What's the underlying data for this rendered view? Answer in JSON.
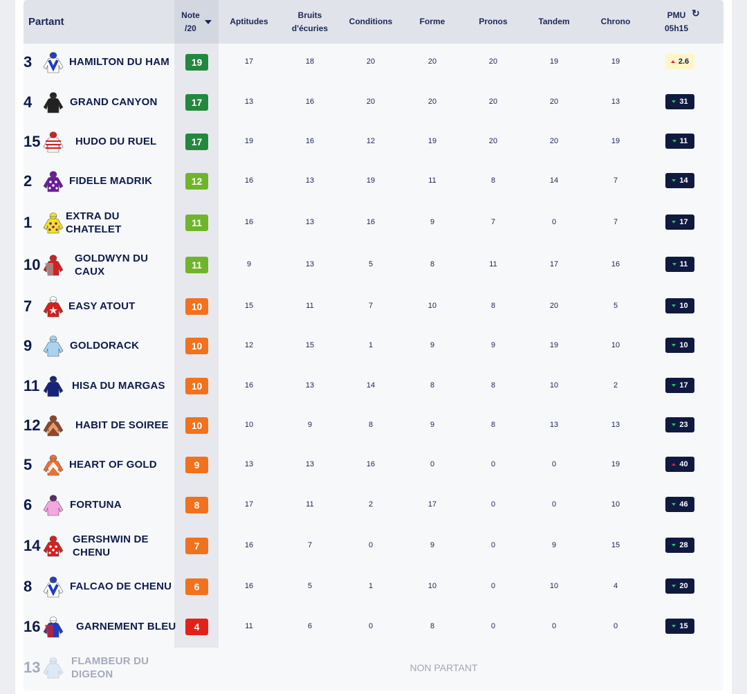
{
  "colors": {
    "note_dark_green": "#23883e",
    "note_light_green": "#6fb52c",
    "note_orange": "#f2711c",
    "note_red": "#e3211b",
    "pmu_bg": "#10193f",
    "fav_bg": "#fff5c8"
  },
  "headers": {
    "partant": "Partant",
    "note_line1": "Note",
    "note_line2": "/20",
    "aptitudes": "Aptitudes",
    "bruits_line1": "Bruits",
    "bruits_line2": "d'écuries",
    "conditions": "Conditions",
    "forme": "Forme",
    "pronos": "Pronos",
    "tandem": "Tandem",
    "chrono": "Chrono",
    "pmu_line1": "PMU",
    "pmu_line2": "05h15",
    "refresh_icon": "↻"
  },
  "runners": [
    {
      "num": "3",
      "name1": "HAMILTON DU HAM",
      "name2": "",
      "note": "19",
      "apt": "17",
      "bruits": "18",
      "cond": "20",
      "forme": "20",
      "pronos": "20",
      "tandem": "19",
      "chrono": "19",
      "pmu": "2.6",
      "trend": "up",
      "fav": true,
      "silk": "blue-white-v"
    },
    {
      "num": "4",
      "name1": "GRAND CANYON",
      "name2": "",
      "note": "17",
      "apt": "13",
      "bruits": "16",
      "cond": "20",
      "forme": "20",
      "pronos": "20",
      "tandem": "20",
      "chrono": "13",
      "pmu": "31",
      "trend": "down",
      "fav": false,
      "silk": "black"
    },
    {
      "num": "15",
      "name1": "HUDO DU RUEL",
      "name2": "",
      "note": "17",
      "apt": "19",
      "bruits": "16",
      "cond": "12",
      "forme": "19",
      "pronos": "20",
      "tandem": "20",
      "chrono": "19",
      "pmu": "11",
      "trend": "down",
      "fav": false,
      "silk": "white-red-stripes"
    },
    {
      "num": "2",
      "name1": "FIDELE MADRIK",
      "name2": "",
      "note": "12",
      "apt": "16",
      "bruits": "13",
      "cond": "19",
      "forme": "11",
      "pronos": "8",
      "tandem": "14",
      "chrono": "7",
      "pmu": "14",
      "trend": "down",
      "fav": false,
      "silk": "purple-dots"
    },
    {
      "num": "1",
      "name1": "EXTRA DU",
      "name2": "CHATELET",
      "note": "11",
      "apt": "16",
      "bruits": "13",
      "cond": "16",
      "forme": "9",
      "pronos": "7",
      "tandem": "0",
      "chrono": "7",
      "pmu": "17",
      "trend": "down",
      "fav": false,
      "silk": "yellow-purple"
    },
    {
      "num": "10",
      "name1": "GOLDWYN DU",
      "name2": "CAUX",
      "note": "11",
      "apt": "9",
      "bruits": "13",
      "cond": "5",
      "forme": "8",
      "pronos": "11",
      "tandem": "17",
      "chrono": "16",
      "pmu": "11",
      "trend": "down",
      "fav": false,
      "silk": "red-grey"
    },
    {
      "num": "7",
      "name1": "EASY ATOUT",
      "name2": "",
      "note": "10",
      "apt": "15",
      "bruits": "11",
      "cond": "7",
      "forme": "10",
      "pronos": "8",
      "tandem": "20",
      "chrono": "5",
      "pmu": "10",
      "trend": "down",
      "fav": false,
      "silk": "red-white-star"
    },
    {
      "num": "9",
      "name1": "GOLDORACK",
      "name2": "",
      "note": "10",
      "apt": "12",
      "bruits": "15",
      "cond": "1",
      "forme": "9",
      "pronos": "9",
      "tandem": "19",
      "chrono": "10",
      "pmu": "10",
      "trend": "down",
      "fav": false,
      "silk": "light-blue"
    },
    {
      "num": "11",
      "name1": "HISA DU MARGAS",
      "name2": "",
      "note": "10",
      "apt": "16",
      "bruits": "13",
      "cond": "14",
      "forme": "8",
      "pronos": "8",
      "tandem": "10",
      "chrono": "2",
      "pmu": "17",
      "trend": "down",
      "fav": false,
      "silk": "navy"
    },
    {
      "num": "12",
      "name1": "HABIT DE SOIREE",
      "name2": "",
      "note": "10",
      "apt": "10",
      "bruits": "9",
      "cond": "8",
      "forme": "9",
      "pronos": "8",
      "tandem": "13",
      "chrono": "13",
      "pmu": "23",
      "trend": "down",
      "fav": false,
      "silk": "brown-chevron"
    },
    {
      "num": "5",
      "name1": "HEART OF GOLD",
      "name2": "",
      "note": "9",
      "apt": "13",
      "bruits": "13",
      "cond": "16",
      "forme": "0",
      "pronos": "0",
      "tandem": "0",
      "chrono": "19",
      "pmu": "40",
      "trend": "up",
      "fav": false,
      "silk": "orange-chevron"
    },
    {
      "num": "6",
      "name1": "FORTUNA",
      "name2": "",
      "note": "8",
      "apt": "17",
      "bruits": "11",
      "cond": "2",
      "forme": "17",
      "pronos": "0",
      "tandem": "0",
      "chrono": "10",
      "pmu": "46",
      "trend": "down",
      "fav": false,
      "silk": "pink"
    },
    {
      "num": "14",
      "name1": "GERSHWIN DE",
      "name2": "CHENU",
      "note": "7",
      "apt": "16",
      "bruits": "7",
      "cond": "0",
      "forme": "9",
      "pronos": "0",
      "tandem": "9",
      "chrono": "15",
      "pmu": "28",
      "trend": "down",
      "fav": false,
      "silk": "red-dots"
    },
    {
      "num": "8",
      "name1": "FALCAO DE CHENU",
      "name2": "",
      "note": "6",
      "apt": "16",
      "bruits": "5",
      "cond": "1",
      "forme": "10",
      "pronos": "0",
      "tandem": "10",
      "chrono": "4",
      "pmu": "20",
      "trend": "down",
      "fav": false,
      "silk": "blue-white-v"
    },
    {
      "num": "16",
      "name1": "GARNEMENT BLEU",
      "name2": "",
      "note": "4",
      "apt": "11",
      "bruits": "6",
      "cond": "0",
      "forme": "8",
      "pronos": "0",
      "tandem": "0",
      "chrono": "0",
      "pmu": "15",
      "trend": "down",
      "fav": false,
      "silk": "blue-red"
    }
  ],
  "non_partant": {
    "num": "13",
    "name1": "FLAMBEUR DU",
    "name2": "DIGEON",
    "label": "NON PARTANT",
    "silk": "light-blue"
  }
}
